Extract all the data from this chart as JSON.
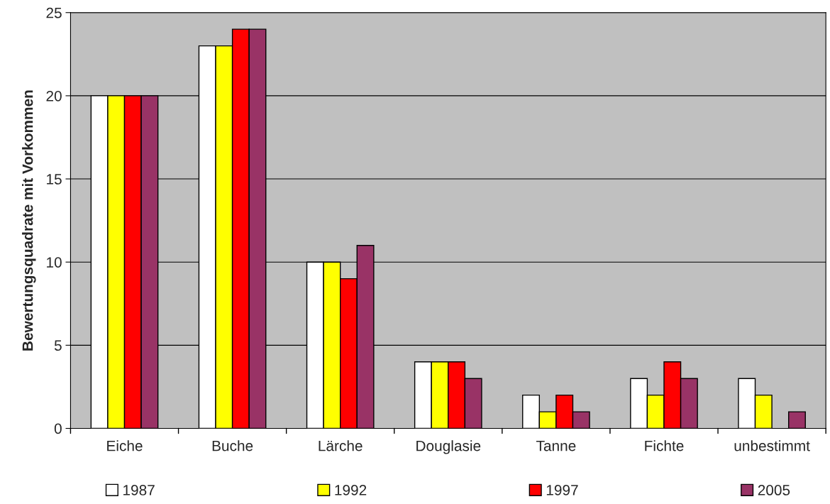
{
  "chart_data": {
    "type": "bar",
    "ylabel": "Bewertungsquadrate mit Vorkommen",
    "categories": [
      "Eiche",
      "Buche",
      "Lärche",
      "Douglasie",
      "Tanne",
      "Fichte",
      "unbestimmt"
    ],
    "series": [
      {
        "name": "1987",
        "color": "#ffffff",
        "values": [
          20,
          23,
          10,
          4,
          2,
          3,
          3
        ]
      },
      {
        "name": "1992",
        "color": "#ffff00",
        "values": [
          20,
          23,
          10,
          4,
          1,
          2,
          2
        ]
      },
      {
        "name": "1997",
        "color": "#ff0000",
        "values": [
          20,
          24,
          9,
          4,
          2,
          4,
          null
        ]
      },
      {
        "name": "2005",
        "color": "#993366",
        "values": [
          20,
          24,
          11,
          3,
          1,
          3,
          1
        ]
      }
    ],
    "ylim": [
      0,
      25
    ],
    "yticks": [
      0,
      5,
      10,
      15,
      20,
      25
    ],
    "grid": "y",
    "legend": "bottom"
  }
}
